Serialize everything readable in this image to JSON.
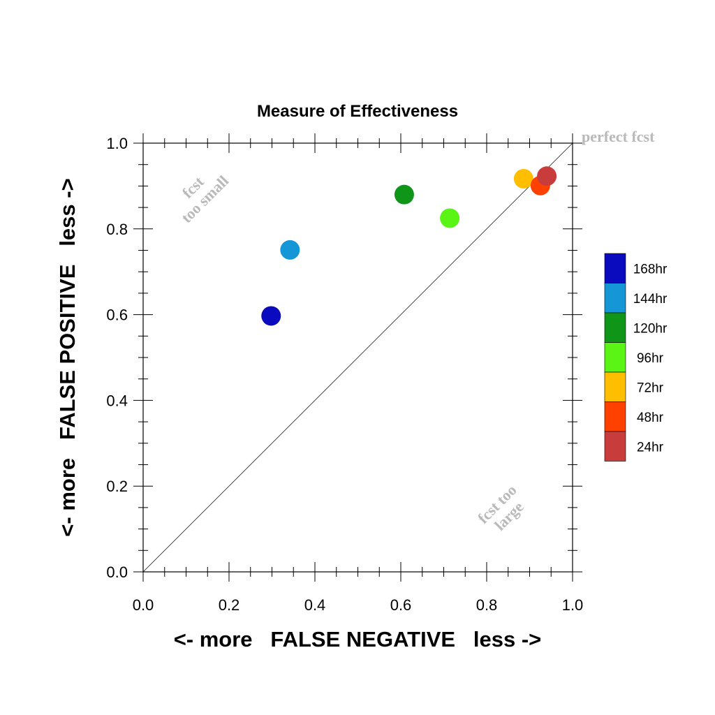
{
  "chart_data": {
    "type": "scatter",
    "title": "Measure of Effectiveness",
    "xlabel": "<- more   FALSE NEGATIVE   less ->",
    "ylabel": "<- more   FALSE POSITIVE   less ->",
    "xlim": [
      0.0,
      1.0
    ],
    "ylim": [
      0.0,
      1.0
    ],
    "xticks": [
      "0.0",
      "0.2",
      "0.4",
      "0.6",
      "0.8",
      "1.0"
    ],
    "yticks": [
      "0.0",
      "0.2",
      "0.4",
      "0.6",
      "0.8",
      "1.0"
    ],
    "grid": false,
    "legend_position": "right",
    "points": [
      {
        "name": "168hr",
        "x": 0.298,
        "y": 0.597,
        "color": "#0a0abf"
      },
      {
        "name": "144hr",
        "x": 0.342,
        "y": 0.751,
        "color": "#1496d7"
      },
      {
        "name": "120hr",
        "x": 0.608,
        "y": 0.88,
        "color": "#0f9619"
      },
      {
        "name": "96hr",
        "x": 0.714,
        "y": 0.825,
        "color": "#5af514"
      },
      {
        "name": "72hr",
        "x": 0.886,
        "y": 0.917,
        "color": "#ffbe00"
      },
      {
        "name": "48hr",
        "x": 0.925,
        "y": 0.901,
        "color": "#ff4100"
      },
      {
        "name": "24hr",
        "x": 0.94,
        "y": 0.923,
        "color": "#c83c3c"
      }
    ],
    "annotations": {
      "perfect": "perfect fcst",
      "too_small_1": "fcst",
      "too_small_2": "too small",
      "too_large_1": "fcst too",
      "too_large_2": "large"
    }
  }
}
